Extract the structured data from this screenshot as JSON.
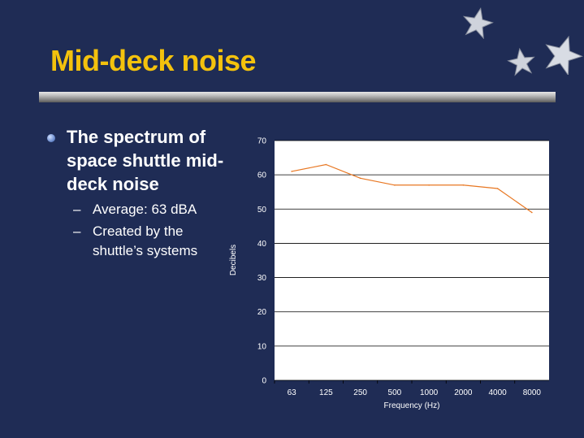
{
  "slide": {
    "title": "Mid-deck noise",
    "bullet": "The spectrum of space shuttle mid-deck noise",
    "sub_bullets": [
      "Average: 63 dBA",
      "Created by the shuttle’s systems"
    ],
    "colors": {
      "background": "#1f2c55",
      "title": "#f4c20d",
      "text": "#ffffff",
      "line": "#e87722"
    },
    "decorations": [
      "star-icon",
      "star-icon",
      "star-icon"
    ]
  },
  "chart_data": {
    "type": "line",
    "categories": [
      "63",
      "125",
      "250",
      "500",
      "1000",
      "2000",
      "4000",
      "8000"
    ],
    "series": [
      {
        "values": [
          61,
          63,
          59,
          57,
          57,
          57,
          56,
          49
        ]
      }
    ],
    "xlabel": "Frequency (Hz)",
    "ylabel": "Decibels",
    "ylim": [
      0,
      70
    ],
    "yticks": [
      0,
      10,
      20,
      30,
      40,
      50,
      60,
      70
    ],
    "grid": true,
    "legend": "none"
  }
}
